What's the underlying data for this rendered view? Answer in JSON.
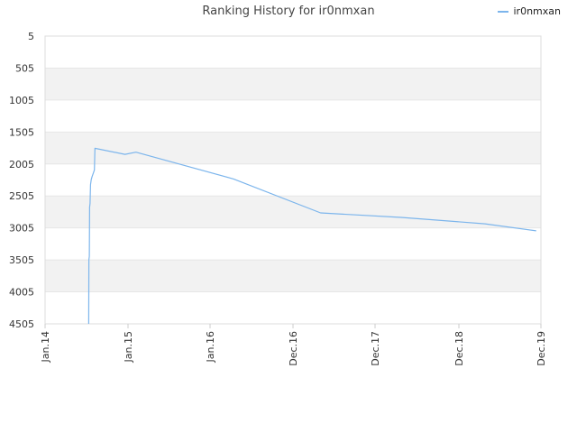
{
  "chart_data": {
    "type": "line",
    "title": "Ranking History for ir0nmxan",
    "xlabel": "",
    "ylabel": "",
    "y_reversed": true,
    "ylim": [
      5,
      4505
    ],
    "y_ticks": [
      5,
      505,
      1005,
      1505,
      2005,
      2505,
      3005,
      3505,
      4005,
      4505
    ],
    "x_ticks": [
      "Jan.14",
      "Jan.15",
      "Jan.16",
      "Dec.16",
      "Dec.17",
      "Dec.18",
      "Dec.19"
    ],
    "xlim": [
      "2014-01-01",
      "2019-12-01"
    ],
    "grid": "horizontal alternating bands",
    "legend_position": "top-right",
    "series": [
      {
        "name": "ir0nmxan",
        "color": "#7cb5ec",
        "points": [
          [
            "2014-07-10",
            4505
          ],
          [
            "2014-07-11",
            3500
          ],
          [
            "2014-07-13",
            3450
          ],
          [
            "2014-07-14",
            2680
          ],
          [
            "2014-07-16",
            2620
          ],
          [
            "2014-07-18",
            2330
          ],
          [
            "2014-07-21",
            2250
          ],
          [
            "2014-07-25",
            2200
          ],
          [
            "2014-07-29",
            2160
          ],
          [
            "2014-08-04",
            2100
          ],
          [
            "2014-08-06",
            1760
          ],
          [
            "2014-12-15",
            1855
          ],
          [
            "2015-02-01",
            1820
          ],
          [
            "2016-04-01",
            2240
          ],
          [
            "2017-04-15",
            2770
          ],
          [
            "2018-04-01",
            2840
          ],
          [
            "2019-04-01",
            2940
          ],
          [
            "2019-11-10",
            3050
          ]
        ]
      }
    ]
  }
}
